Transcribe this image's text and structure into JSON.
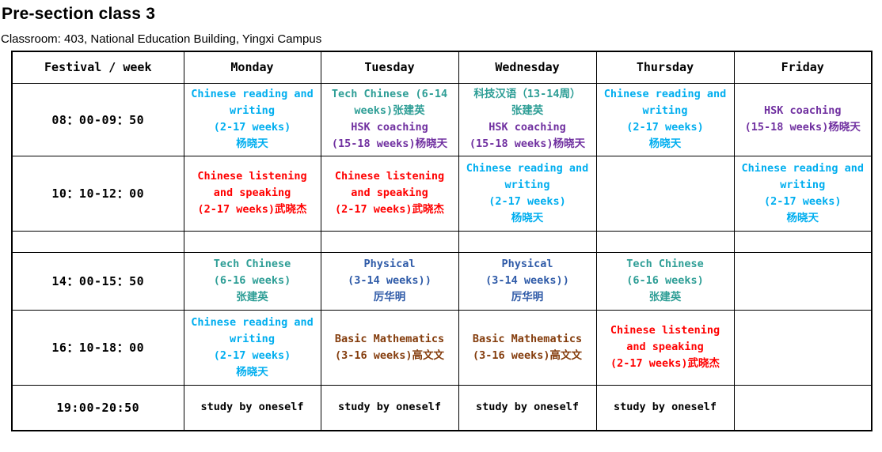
{
  "page": {
    "title": "Pre-section class 3",
    "subtitle": "Classroom: 403, National Education Building, Yingxi Campus"
  },
  "colors": {
    "light_blue": "#00AEEF",
    "teal": "#2E9E96",
    "purple": "#7030A0",
    "red": "#FF0000",
    "blue": "#2F5BA8",
    "brown": "#843C0C",
    "black": "#000000"
  },
  "timetable": {
    "corner_header": "Festival / week",
    "day_headers": [
      "Monday",
      "Tuesday",
      "Wednesday",
      "Thursday",
      "Friday"
    ],
    "rows": [
      {
        "time": "08：00-09：50",
        "cells": [
          [
            {
              "color": "light_blue",
              "lines": [
                "Chinese reading and",
                "writing",
                "(2-17 weeks)",
                "杨晓天"
              ]
            }
          ],
          [
            {
              "color": "teal",
              "lines": [
                "Tech Chinese (6-14",
                "weeks)张建英"
              ]
            },
            {
              "color": "purple",
              "lines": [
                "HSK coaching",
                "(15-18 weeks)杨晓天"
              ]
            }
          ],
          [
            {
              "color": "teal",
              "lines": [
                "科技汉语（13-14周）",
                "张建英"
              ]
            },
            {
              "color": "purple",
              "lines": [
                "HSK coaching",
                "(15-18 weeks)杨晓天"
              ]
            }
          ],
          [
            {
              "color": "light_blue",
              "lines": [
                "Chinese reading and",
                "writing",
                "(2-17 weeks)",
                "杨晓天"
              ]
            }
          ],
          [
            {
              "color": "purple",
              "lines": [
                "HSK coaching",
                "(15-18 weeks)杨晓天"
              ]
            }
          ]
        ]
      },
      {
        "time": "10：10-12：00",
        "cells": [
          [
            {
              "color": "red",
              "lines": [
                "Chinese listening",
                "and speaking",
                "(2-17 weeks)武晓杰"
              ]
            }
          ],
          [
            {
              "color": "red",
              "lines": [
                "Chinese listening",
                "and speaking",
                "(2-17 weeks)武晓杰"
              ]
            }
          ],
          [
            {
              "color": "light_blue",
              "lines": [
                "Chinese reading and",
                "writing",
                "(2-17 weeks)",
                "杨晓天"
              ]
            }
          ],
          [],
          [
            {
              "color": "light_blue",
              "lines": [
                "Chinese reading and",
                "writing",
                "(2-17 weeks)",
                "杨晓天"
              ]
            }
          ]
        ]
      },
      {
        "time": "",
        "cells": [
          [],
          [],
          [],
          [],
          []
        ]
      },
      {
        "time": "14：00-15：50",
        "cells": [
          [
            {
              "color": "teal",
              "lines": [
                "Tech Chinese",
                "(6-16 weeks)",
                "张建英"
              ]
            }
          ],
          [
            {
              "color": "blue",
              "lines": [
                "Physical",
                "(3-14 weeks))",
                "厉华明"
              ]
            }
          ],
          [
            {
              "color": "blue",
              "lines": [
                "Physical",
                "(3-14 weeks))",
                "厉华明"
              ]
            }
          ],
          [
            {
              "color": "teal",
              "lines": [
                "Tech Chinese",
                "(6-16 weeks)",
                "张建英"
              ]
            }
          ],
          []
        ]
      },
      {
        "time": "16：10-18：00",
        "cells": [
          [
            {
              "color": "light_blue",
              "lines": [
                "Chinese reading and",
                "writing",
                "(2-17 weeks)",
                "杨晓天"
              ]
            }
          ],
          [
            {
              "color": "brown",
              "lines": [
                "Basic Mathematics",
                "(3-16 weeks)高文文"
              ]
            }
          ],
          [
            {
              "color": "brown",
              "lines": [
                "Basic Mathematics",
                "(3-16 weeks)高文文"
              ]
            }
          ],
          [
            {
              "color": "red",
              "lines": [
                "Chinese listening",
                "and speaking",
                "(2-17 weeks)武晓杰"
              ]
            }
          ],
          []
        ]
      },
      {
        "time": "19:00-20:50",
        "cells": [
          [
            {
              "color": "black",
              "lines": [
                "study by oneself"
              ]
            }
          ],
          [
            {
              "color": "black",
              "lines": [
                "study by oneself"
              ]
            }
          ],
          [
            {
              "color": "black",
              "lines": [
                "study by oneself"
              ]
            }
          ],
          [
            {
              "color": "black",
              "lines": [
                "study by oneself"
              ]
            }
          ],
          []
        ]
      }
    ]
  }
}
